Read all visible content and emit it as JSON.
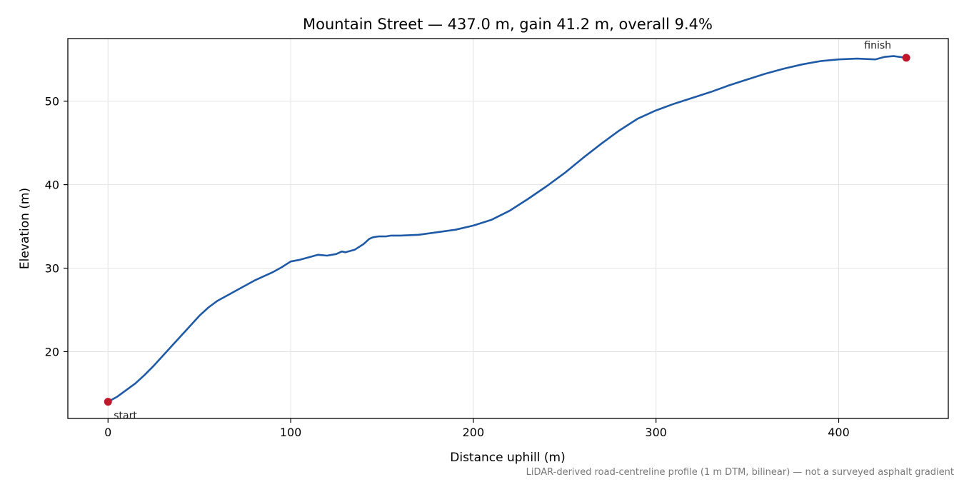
{
  "chart_data": {
    "type": "line",
    "title": "Mountain Street — 437.0 m, gain 41.2 m, overall 9.4%",
    "xlabel": "Distance uphill (m)",
    "ylabel": "Elevation (m)",
    "xlim": [
      -22,
      460
    ],
    "ylim": [
      12,
      57.5
    ],
    "xticks": [
      0,
      100,
      200,
      300,
      400
    ],
    "yticks": [
      20,
      30,
      40,
      50
    ],
    "grid": true,
    "series": [
      {
        "color": "#1f5aa6",
        "x": [
          0,
          5,
          10,
          15,
          20,
          25,
          30,
          35,
          40,
          45,
          50,
          55,
          60,
          65,
          70,
          75,
          80,
          85,
          90,
          95,
          100,
          105,
          110,
          115,
          120,
          125,
          128,
          130,
          135,
          140,
          143,
          145,
          148,
          150,
          152,
          155,
          160,
          170,
          180,
          190,
          200,
          210,
          220,
          230,
          240,
          250,
          260,
          270,
          280,
          290,
          300,
          310,
          320,
          330,
          340,
          350,
          360,
          370,
          380,
          390,
          400,
          410,
          420,
          425,
          430,
          437
        ],
        "y": [
          14.0,
          14.6,
          15.4,
          16.2,
          17.2,
          18.3,
          19.5,
          20.7,
          21.9,
          23.1,
          24.3,
          25.3,
          26.1,
          26.7,
          27.3,
          27.9,
          28.5,
          29.0,
          29.5,
          30.1,
          30.8,
          31.0,
          31.3,
          31.6,
          31.5,
          31.7,
          32.0,
          31.9,
          32.2,
          32.9,
          33.5,
          33.7,
          33.8,
          33.8,
          33.8,
          33.9,
          33.9,
          34.0,
          34.3,
          34.6,
          35.1,
          35.8,
          36.9,
          38.3,
          39.8,
          41.4,
          43.2,
          44.9,
          46.5,
          47.9,
          48.9,
          49.7,
          50.4,
          51.1,
          51.9,
          52.6,
          53.3,
          53.9,
          54.4,
          54.8,
          55.0,
          55.1,
          55.0,
          55.3,
          55.4,
          55.2
        ]
      }
    ],
    "markers": [
      {
        "label": "start",
        "x": 0,
        "y": 14.0,
        "color": "#c0172a"
      },
      {
        "label": "finish",
        "x": 437,
        "y": 55.2,
        "color": "#c0172a"
      }
    ],
    "footnote": "LiDAR-derived road-centreline profile (1 m DTM, bilinear) — not a surveyed asphalt gradient"
  }
}
